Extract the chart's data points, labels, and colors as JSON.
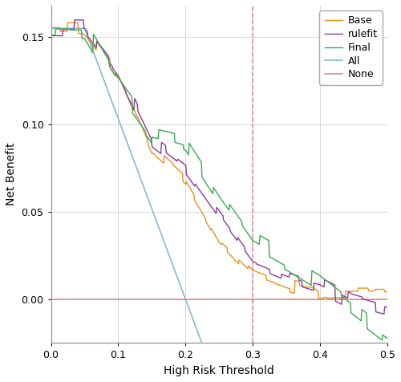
{
  "title": "",
  "xlabel": "High Risk Threshold",
  "ylabel": "Net Benefit",
  "xlim": [
    0.0,
    0.5
  ],
  "ylim": [
    -0.025,
    0.168
  ],
  "yticks": [
    0.0,
    0.05,
    0.1,
    0.15
  ],
  "xticks": [
    0.0,
    0.1,
    0.2,
    0.3,
    0.4,
    0.5
  ],
  "vline_x": 0.3,
  "vline_color": "#cd8080",
  "none_color": "#e08080",
  "all_color": "#7ab4d4",
  "base_color": "#e8921e",
  "rulefit_color": "#8b3aa0",
  "final_color": "#3aaa50",
  "figsize": [
    5.0,
    4.76
  ],
  "dpi": 100,
  "legend_order": [
    "Base",
    "rulefit",
    "Final",
    "All",
    "None"
  ]
}
